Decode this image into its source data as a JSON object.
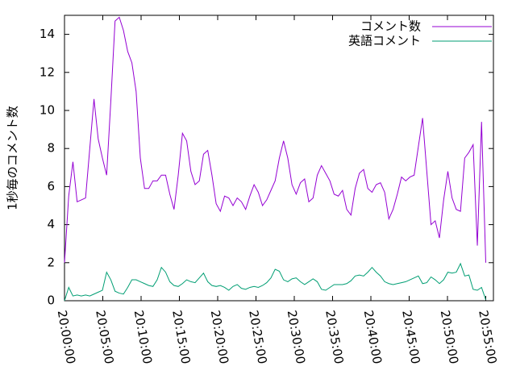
{
  "chart_data": {
    "type": "line",
    "ylabel": "1秒毎のコメント数",
    "x": [
      "20:00:00",
      "20:00:33",
      "20:01:06",
      "20:01:39",
      "20:02:12",
      "20:02:45",
      "20:03:18",
      "20:03:51",
      "20:04:24",
      "20:04:57",
      "20:05:30",
      "20:06:03",
      "20:06:36",
      "20:07:09",
      "20:07:42",
      "20:08:15",
      "20:08:48",
      "20:09:21",
      "20:09:54",
      "20:10:27",
      "20:11:00",
      "20:11:33",
      "20:12:06",
      "20:12:39",
      "20:13:12",
      "20:13:45",
      "20:14:18",
      "20:14:51",
      "20:15:24",
      "20:15:57",
      "20:16:30",
      "20:17:03",
      "20:17:36",
      "20:18:09",
      "20:18:42",
      "20:19:15",
      "20:19:48",
      "20:20:21",
      "20:20:54",
      "20:21:27",
      "20:22:00",
      "20:22:33",
      "20:23:06",
      "20:23:39",
      "20:24:12",
      "20:24:45",
      "20:25:18",
      "20:25:51",
      "20:26:24",
      "20:26:57",
      "20:27:30",
      "20:28:03",
      "20:28:36",
      "20:29:09",
      "20:29:42",
      "20:30:15",
      "20:30:48",
      "20:31:21",
      "20:31:54",
      "20:32:27",
      "20:33:00",
      "20:33:33",
      "20:34:06",
      "20:34:39",
      "20:35:12",
      "20:35:45",
      "20:36:18",
      "20:36:51",
      "20:37:24",
      "20:37:57",
      "20:38:30",
      "20:39:03",
      "20:39:36",
      "20:40:09",
      "20:40:42",
      "20:41:15",
      "20:41:48",
      "20:42:21",
      "20:42:54",
      "20:43:27",
      "20:44:00",
      "20:44:33",
      "20:45:06",
      "20:45:39",
      "20:46:12",
      "20:46:45",
      "20:47:18",
      "20:47:51",
      "20:48:24",
      "20:48:57",
      "20:49:30",
      "20:50:03",
      "20:50:36",
      "20:51:09",
      "20:51:42",
      "20:52:15",
      "20:52:48",
      "20:53:21",
      "20:53:54",
      "20:54:27",
      "20:55:00"
    ],
    "series": [
      {
        "name": "コメント数",
        "color": "#9400d3",
        "values": [
          2.0,
          5.5,
          7.3,
          5.2,
          5.3,
          5.4,
          8,
          10.6,
          8.5,
          7.5,
          6.6,
          10.5,
          14.7,
          14.9,
          14.2,
          13.1,
          12.5,
          11.0,
          7.5,
          5.9,
          5.9,
          6.3,
          6.3,
          6.6,
          6.6,
          5.6,
          4.8,
          6.6,
          8.8,
          8.4,
          6.8,
          6.1,
          6.3,
          7.7,
          7.9,
          6.6,
          5.1,
          4.7,
          5.5,
          5.4,
          5.0,
          5.4,
          5.2,
          4.8,
          5.5,
          6.1,
          5.7,
          5.0,
          5.3,
          5.8,
          6.3,
          7.5,
          8.4,
          7.5,
          6.1,
          5.6,
          6.2,
          6.4,
          5.2,
          5.4,
          6.6,
          7.1,
          6.7,
          6.3,
          5.6,
          5.5,
          5.8,
          4.8,
          4.5,
          5.9,
          6.7,
          6.9,
          5.9,
          5.7,
          6.1,
          6.2,
          5.7,
          4.3,
          4.8,
          5.6,
          6.5,
          6.3,
          6.5,
          6.6,
          8.1,
          9.6,
          6.8,
          4.0,
          4.2,
          3.3,
          5.3,
          6.8,
          5.4,
          4.8,
          4.7,
          7.5,
          7.8,
          8.2,
          2.9,
          9.4,
          2.0
        ]
      },
      {
        "name": "英語コメント",
        "color": "#009e73",
        "values": [
          0.0,
          0.7,
          0.25,
          0.3,
          0.25,
          0.3,
          0.25,
          0.35,
          0.45,
          0.55,
          1.5,
          1.1,
          0.5,
          0.4,
          0.35,
          0.7,
          1.1,
          1.1,
          1.0,
          0.9,
          0.8,
          0.75,
          1.1,
          1.75,
          1.5,
          1.0,
          0.8,
          0.75,
          0.9,
          1.1,
          1.0,
          0.95,
          1.2,
          1.45,
          1.0,
          0.8,
          0.75,
          0.8,
          0.7,
          0.55,
          0.75,
          0.85,
          0.65,
          0.6,
          0.7,
          0.75,
          0.7,
          0.8,
          0.95,
          1.2,
          1.65,
          1.55,
          1.1,
          1.0,
          1.15,
          1.2,
          1.0,
          0.85,
          1.0,
          1.15,
          1.0,
          0.6,
          0.55,
          0.7,
          0.85,
          0.85,
          0.85,
          0.9,
          1.05,
          1.3,
          1.35,
          1.3,
          1.5,
          1.75,
          1.5,
          1.3,
          1.0,
          0.9,
          0.85,
          0.9,
          0.95,
          1.0,
          1.1,
          1.2,
          1.3,
          0.9,
          0.95,
          1.25,
          1.1,
          0.9,
          1.1,
          1.5,
          1.45,
          1.5,
          1.95,
          1.3,
          1.35,
          0.6,
          0.55,
          0.7,
          0.05
        ]
      }
    ],
    "xlim": [
      "20:00:00",
      "20:56:00"
    ],
    "xticks": [
      "20:00:00",
      "20:05:00",
      "20:10:00",
      "20:15:00",
      "20:20:00",
      "20:25:00",
      "20:30:00",
      "20:35:00",
      "20:40:00",
      "20:45:00",
      "20:50:00",
      "20:55:00"
    ],
    "ylim": [
      0,
      15
    ],
    "yticks": [
      0,
      2,
      4,
      6,
      8,
      10,
      12,
      14
    ],
    "legend": "top-right"
  }
}
